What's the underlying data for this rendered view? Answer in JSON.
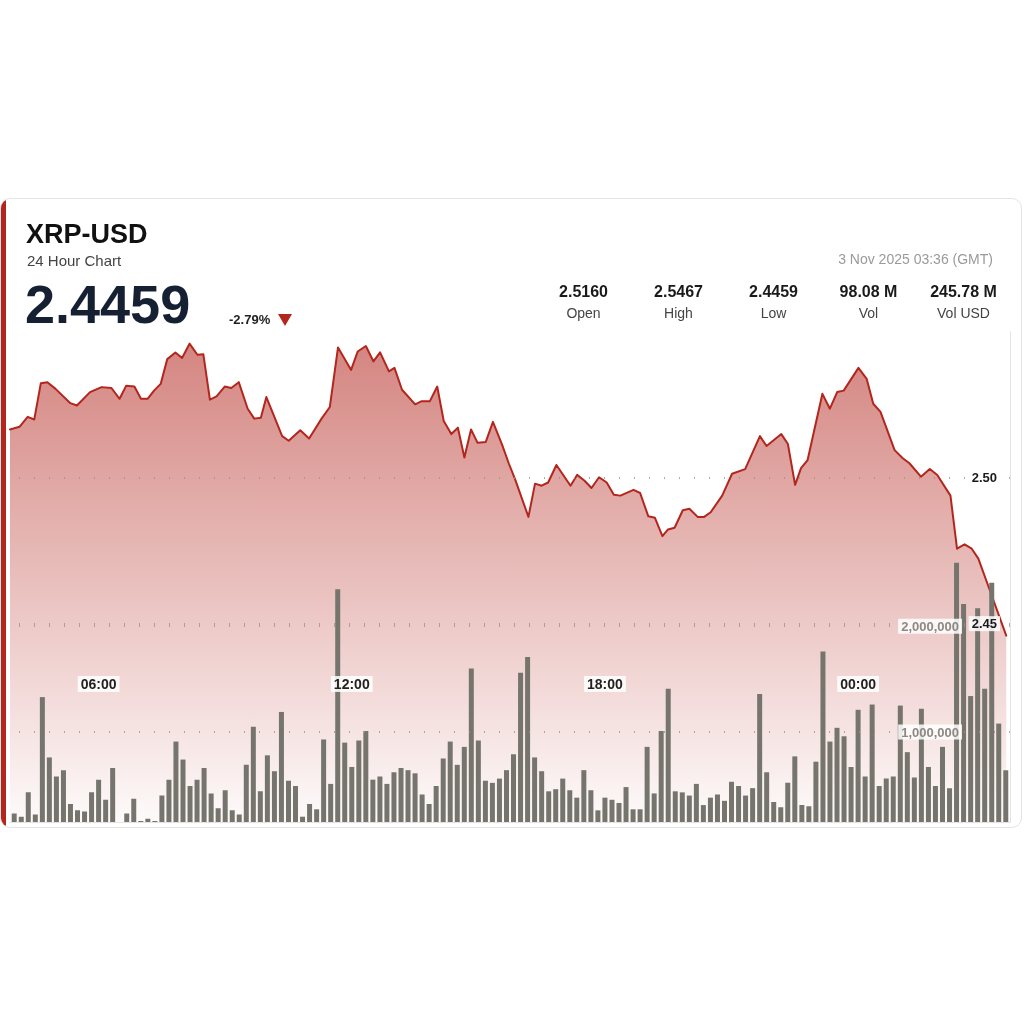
{
  "chart_data": {
    "type": "area",
    "title": "XRP-USD",
    "subtitle": "24 Hour Chart",
    "annotations": [
      "2.4459",
      "-2.79%",
      "2.5160",
      "Open",
      "2.5467",
      "High",
      "2.4459",
      "Low",
      "98.08 M",
      "Vol",
      "245.78 M",
      "Vol USD",
      "3 Nov 2025 03:36 (GMT)"
    ],
    "xlim": [
      3.9,
      27.6
    ],
    "xticks": [
      {
        "value": 6,
        "label": "06:00"
      },
      {
        "value": 12,
        "label": "12:00"
      },
      {
        "value": 18,
        "label": "18:00"
      },
      {
        "value": 24,
        "label": "00:00"
      }
    ],
    "ylim": [
      2.382,
      2.55
    ],
    "yticks": [
      2.45,
      {
        "value": 2.5,
        "label": "2.50"
      }
    ],
    "y2lim": [
      150000,
      4780000
    ],
    "y2ticks": [
      {
        "value": 1000000,
        "label": "1,000,000"
      },
      {
        "value": 2000000,
        "label": "2,000,000"
      }
    ],
    "grid": true,
    "series": [
      {
        "type": "bar",
        "axis": "y2",
        "color": "#75756d",
        "x": [
          4,
          4.167,
          4.333,
          4.5,
          4.667,
          4.833,
          5,
          5.167,
          5.333,
          5.5,
          5.667,
          5.833,
          6,
          6.167,
          6.333,
          6.5,
          6.667,
          6.833,
          7,
          7.167,
          7.333,
          7.5,
          7.667,
          7.833,
          8,
          8.167,
          8.333,
          8.5,
          8.667,
          8.833,
          9,
          9.167,
          9.333,
          9.5,
          9.667,
          9.833,
          10,
          10.167,
          10.333,
          10.5,
          10.667,
          10.833,
          11,
          11.167,
          11.333,
          11.5,
          11.667,
          11.833,
          12,
          12.167,
          12.333,
          12.5,
          12.667,
          12.833,
          13,
          13.167,
          13.333,
          13.5,
          13.667,
          13.833,
          14,
          14.167,
          14.333,
          14.5,
          14.667,
          14.833,
          15,
          15.167,
          15.333,
          15.5,
          15.667,
          15.833,
          16,
          16.167,
          16.333,
          16.5,
          16.667,
          16.833,
          17,
          17.167,
          17.333,
          17.5,
          17.667,
          17.833,
          18,
          18.167,
          18.333,
          18.5,
          18.667,
          18.833,
          19,
          19.167,
          19.333,
          19.5,
          19.667,
          19.833,
          20,
          20.167,
          20.333,
          20.5,
          20.667,
          20.833,
          21,
          21.167,
          21.333,
          21.5,
          21.667,
          21.833,
          22,
          22.167,
          22.333,
          22.5,
          22.667,
          22.833,
          23,
          23.167,
          23.333,
          23.5,
          23.667,
          23.833,
          24,
          24.167,
          24.333,
          24.5,
          24.667,
          24.833,
          25,
          25.167,
          25.333,
          25.5,
          25.667,
          25.833,
          26,
          26.167,
          26.333,
          26.5,
          26.667,
          26.833,
          27,
          27.167,
          27.333,
          27.5
        ],
        "values": [
          230000,
          200000,
          430000,
          220000,
          1330000,
          760000,
          580000,
          640000,
          320000,
          260000,
          250000,
          430000,
          550000,
          360000,
          660000,
          null,
          230000,
          370000,
          160000,
          180000,
          160000,
          400000,
          550000,
          910000,
          740000,
          490000,
          550000,
          660000,
          420000,
          280000,
          450000,
          260000,
          220000,
          690000,
          1050000,
          440000,
          780000,
          630000,
          1190000,
          540000,
          490000,
          200000,
          320000,
          270000,
          930000,
          510000,
          2350000,
          900000,
          670000,
          920000,
          1010000,
          550000,
          580000,
          510000,
          620000,
          660000,
          640000,
          610000,
          410000,
          320000,
          490000,
          750000,
          910000,
          690000,
          860000,
          1600000,
          920000,
          540000,
          520000,
          560000,
          640000,
          790000,
          1560000,
          1710000,
          760000,
          630000,
          440000,
          460000,
          560000,
          450000,
          380000,
          640000,
          450000,
          260000,
          380000,
          360000,
          330000,
          480000,
          270000,
          270000,
          860000,
          420000,
          1010000,
          1410000,
          440000,
          430000,
          400000,
          510000,
          310000,
          380000,
          410000,
          350000,
          530000,
          490000,
          400000,
          470000,
          1360000,
          620000,
          340000,
          290000,
          520000,
          770000,
          310000,
          300000,
          720000,
          1760000,
          910000,
          1040000,
          960000,
          670000,
          1210000,
          580000,
          1260000,
          490000,
          560000,
          580000,
          1250000,
          810000,
          570000,
          1220000,
          670000,
          490000,
          860000,
          470000,
          2600000,
          2210000,
          1340000,
          2170000,
          1410000,
          2410000,
          1080000,
          640000
        ]
      },
      {
        "color": "#b3261e",
        "x": [
          3.9,
          4.125,
          4.319,
          4.475,
          4.63,
          4.786,
          4.98,
          5.33,
          5.486,
          5.797,
          6.07,
          6.304,
          6.497,
          6.654,
          6.848,
          7.004,
          7.16,
          7.314,
          7.471,
          7.627,
          7.821,
          7.978,
          8.155,
          8.342,
          8.482,
          8.638,
          8.795,
          8.989,
          9.145,
          9.322,
          9.533,
          9.689,
          9.845,
          9.976,
          10.35,
          10.506,
          10.779,
          10.989,
          11.284,
          11.48,
          11.674,
          11.984,
          12.14,
          12.334,
          12.514,
          12.671,
          12.881,
          13.011,
          13.191,
          13.502,
          13.658,
          13.852,
          14.025,
          14.179,
          14.359,
          14.515,
          14.669,
          14.826,
          14.982,
          15.176,
          15.346,
          15.566,
          15.72,
          15.876,
          16.187,
          16.343,
          16.5,
          16.654,
          16.85,
          17.184,
          17.34,
          17.511,
          17.681,
          17.861,
          18.041,
          18.211,
          18.367,
          18.678,
          18.834,
          19.028,
          19.185,
          19.362,
          19.495,
          19.651,
          19.845,
          20.002,
          20.196,
          20.352,
          20.506,
          20.779,
          21.013,
          21.323,
          21.673,
          21.83,
          22.18,
          22.336,
          22.507,
          22.647,
          22.803,
          23.154,
          23.331,
          23.504,
          23.658,
          24.008,
          24.204,
          24.359,
          24.531,
          24.865,
          25.059,
          25.216,
          25.489,
          25.699,
          25.876,
          26.189,
          26.344,
          26.523,
          26.693,
          26.85,
          27.083,
          27.511
        ],
        "values": [
          2.5166,
          2.5175,
          2.5209,
          2.52,
          2.5324,
          2.5328,
          2.5305,
          2.5256,
          2.5248,
          2.5294,
          2.5311,
          2.5308,
          2.5271,
          2.5316,
          2.5313,
          2.5271,
          2.5271,
          2.5299,
          2.5322,
          2.5407,
          2.543,
          2.5411,
          2.546,
          2.5422,
          2.5424,
          2.5268,
          2.5279,
          2.5313,
          2.5308,
          2.5328,
          2.5237,
          2.5203,
          2.5206,
          2.5277,
          2.5143,
          2.5127,
          2.5163,
          2.5135,
          2.5203,
          2.5243,
          2.5447,
          2.537,
          2.5433,
          2.5452,
          2.5399,
          2.543,
          2.5365,
          2.5377,
          2.5302,
          2.5252,
          2.5263,
          2.5263,
          2.5313,
          2.5195,
          2.515,
          2.5172,
          2.507,
          2.5166,
          2.512,
          2.5123,
          2.5192,
          2.5112,
          2.505,
          2.4993,
          2.4866,
          2.498,
          2.4973,
          2.4984,
          2.5044,
          2.4973,
          2.501,
          2.4991,
          2.4965,
          2.5002,
          2.4984,
          2.4942,
          2.4939,
          2.4959,
          2.4948,
          2.4868,
          2.4863,
          2.48,
          2.4823,
          2.4829,
          2.4889,
          2.4894,
          2.4866,
          2.4866,
          2.4882,
          2.4939,
          2.5014,
          2.503,
          2.5143,
          2.5109,
          2.515,
          2.5116,
          2.4976,
          2.5033,
          2.5061,
          2.5288,
          2.5237,
          2.5294,
          2.5299,
          2.5377,
          2.5339,
          2.5254,
          2.5226,
          2.5095,
          2.5067,
          2.505,
          2.5004,
          2.503,
          2.501,
          2.4939,
          2.4757,
          2.4772,
          2.4757,
          2.4723,
          2.463,
          2.4459
        ]
      }
    ]
  }
}
